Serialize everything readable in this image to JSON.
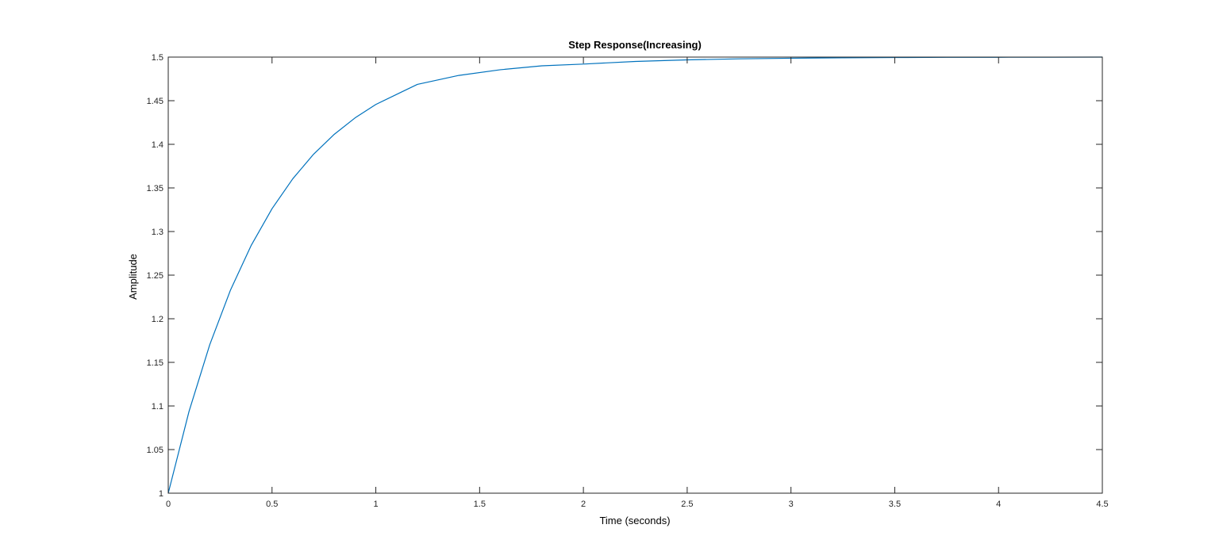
{
  "chart_data": {
    "type": "line",
    "title": "Step Response(Increasing)",
    "xlabel": "Time (seconds)",
    "ylabel": "Amplitude",
    "xlim": [
      0,
      4.5
    ],
    "ylim": [
      1,
      1.5
    ],
    "x_ticks": [
      0,
      0.5,
      1,
      1.5,
      2,
      2.5,
      3,
      3.5,
      4,
      4.5
    ],
    "y_ticks": [
      1,
      1.05,
      1.1,
      1.15,
      1.2,
      1.25,
      1.3,
      1.35,
      1.4,
      1.45,
      1.5
    ],
    "x_tick_labels": [
      "0",
      "0.5",
      "1",
      "1.5",
      "2",
      "2.5",
      "3",
      "3.5",
      "4",
      "4.5"
    ],
    "y_tick_labels": [
      "1",
      "1.05",
      "1.1",
      "1.15",
      "1.2",
      "1.25",
      "1.3",
      "1.35",
      "1.4",
      "1.45",
      "1.5"
    ],
    "grid": false,
    "reference_line": {
      "y": 1.5,
      "style": "dotted"
    },
    "series": [
      {
        "color": "#0072bd",
        "x": [
          0,
          0.1,
          0.2,
          0.3,
          0.4,
          0.5,
          0.6,
          0.7,
          0.8,
          0.9,
          1.0,
          1.2,
          1.4,
          1.6,
          1.8,
          2.0,
          2.25,
          2.5,
          2.75,
          3.0,
          3.25,
          3.5,
          3.75,
          4.0,
          4.25,
          4.5
        ],
        "y": [
          1,
          1.0937,
          1.1703,
          1.233,
          1.2843,
          1.3262,
          1.3605,
          1.3886,
          1.4115,
          1.4303,
          1.4457,
          1.4687,
          1.479,
          1.4855,
          1.49,
          1.492,
          1.495,
          1.4968,
          1.498,
          1.4987,
          1.4992,
          1.4995,
          1.4997,
          1.4998,
          1.4999,
          1.5
        ]
      }
    ]
  }
}
